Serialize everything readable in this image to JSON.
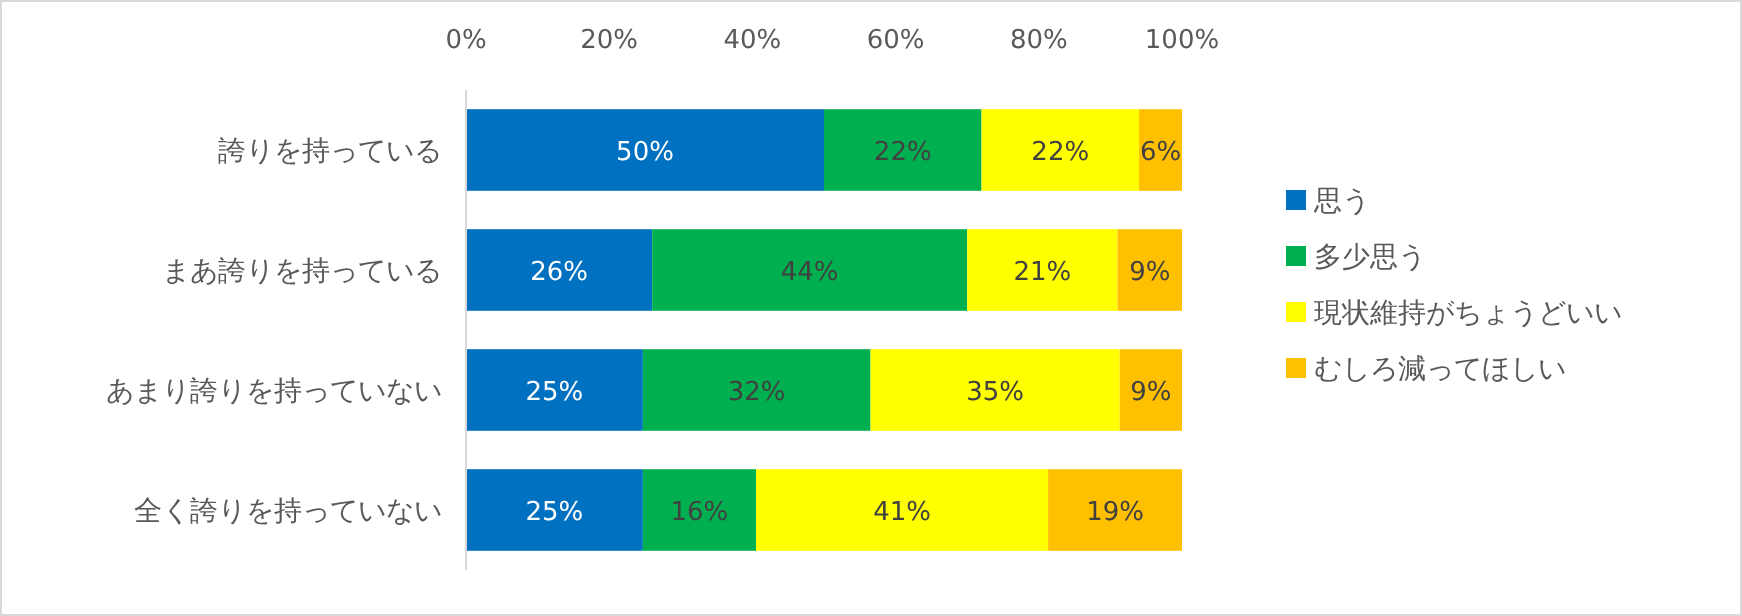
{
  "chart_data": {
    "type": "bar",
    "orientation": "horizontal",
    "stacked": true,
    "grid": false,
    "legend": "right",
    "categories": [
      "誇りを持っている",
      "まあ誇りを持っている",
      "あまり誇りを持っていない",
      "全く誇りを持っていない"
    ],
    "series": [
      {
        "name": "思う",
        "color": "#0070c0",
        "values": [
          50,
          26,
          24.7,
          24.7
        ],
        "value_labels": [
          "50%",
          "26%",
          "25%",
          "25%"
        ]
      },
      {
        "name": "多少思う",
        "color": "#00b050",
        "values": [
          22,
          44,
          31.8,
          15.8
        ],
        "value_labels": [
          "22%",
          "44%",
          "32%",
          "16%"
        ]
      },
      {
        "name": "現状維持がちょうどいい",
        "color": "#ffff00",
        "values": [
          22,
          21,
          34.8,
          40.8
        ],
        "value_labels": [
          "22%",
          "21%",
          "35%",
          "41%"
        ]
      },
      {
        "name": "むしろ減ってほしい",
        "color": "#ffc000",
        "values": [
          6,
          9,
          8.7,
          18.7
        ],
        "value_labels": [
          "6%",
          "9%",
          "9%",
          "19%"
        ]
      }
    ],
    "xlim": [
      0,
      100
    ],
    "xticks": [
      {
        "value": 0,
        "label": "0%"
      },
      {
        "value": 20,
        "label": "20%"
      },
      {
        "value": 40,
        "label": "40%"
      },
      {
        "value": 60,
        "label": "60%"
      },
      {
        "value": 80,
        "label": "80%"
      },
      {
        "value": 100,
        "label": "100%"
      }
    ]
  }
}
